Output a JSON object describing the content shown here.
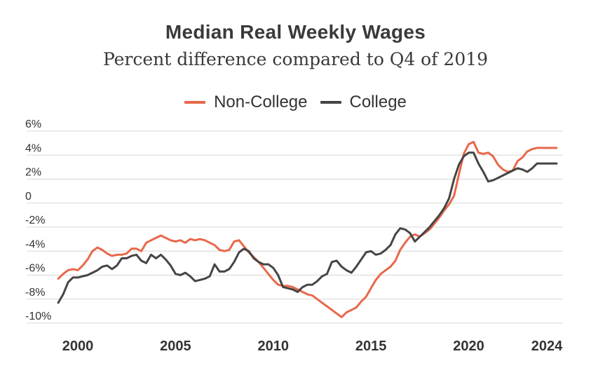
{
  "colors": {
    "non_college": "#e8684a",
    "college": "#454545",
    "grid": "#d6d6d6",
    "text": "#333333"
  },
  "chart_data": {
    "type": "line",
    "title": "Median Real Weekly Wages",
    "subtitle": "Percent difference compared to Q4 of 2019",
    "ylim": [
      -10,
      6
    ],
    "xlim": [
      1999,
      2024.5
    ],
    "yticks": [
      {
        "value": 6,
        "label": "6%"
      },
      {
        "value": 4,
        "label": "4%"
      },
      {
        "value": 2,
        "label": "2%"
      },
      {
        "value": 0,
        "label": "0"
      },
      {
        "value": -2,
        "label": "-2%"
      },
      {
        "value": -4,
        "label": "-4%"
      },
      {
        "value": -6,
        "label": "-6%"
      },
      {
        "value": -8,
        "label": "-8%"
      },
      {
        "value": -10,
        "label": "-10%"
      }
    ],
    "xticks": [
      {
        "value": 2000,
        "label": "2000"
      },
      {
        "value": 2005,
        "label": "2005"
      },
      {
        "value": 2010,
        "label": "2010"
      },
      {
        "value": 2015,
        "label": "2015"
      },
      {
        "value": 2020,
        "label": "2020"
      },
      {
        "value": 2024,
        "label": "2024"
      }
    ],
    "grid": true,
    "legend": "top-center",
    "series": [
      {
        "name": "Non-College",
        "color_key": "non_college",
        "x": [
          1999.0,
          1999.25,
          1999.5,
          1999.75,
          2000.0,
          2000.25,
          2000.5,
          2000.75,
          2001.0,
          2001.25,
          2001.5,
          2001.75,
          2002.0,
          2002.25,
          2002.5,
          2002.75,
          2003.0,
          2003.25,
          2003.5,
          2003.75,
          2004.0,
          2004.25,
          2004.5,
          2004.75,
          2005.0,
          2005.25,
          2005.5,
          2005.75,
          2006.0,
          2006.25,
          2006.5,
          2006.75,
          2007.0,
          2007.25,
          2007.5,
          2007.75,
          2008.0,
          2008.25,
          2008.5,
          2008.75,
          2009.0,
          2009.25,
          2009.5,
          2009.75,
          2010.0,
          2010.25,
          2010.5,
          2010.75,
          2011.0,
          2011.25,
          2011.5,
          2011.75,
          2012.0,
          2012.25,
          2012.5,
          2012.75,
          2013.0,
          2013.25,
          2013.5,
          2013.75,
          2014.0,
          2014.25,
          2014.5,
          2014.75,
          2015.0,
          2015.25,
          2015.5,
          2015.75,
          2016.0,
          2016.25,
          2016.5,
          2016.75,
          2017.0,
          2017.25,
          2017.5,
          2017.75,
          2018.0,
          2018.25,
          2018.5,
          2018.75,
          2019.0,
          2019.25,
          2019.5,
          2019.75,
          2020.0,
          2020.25,
          2020.5,
          2020.75,
          2021.0,
          2021.25,
          2021.5,
          2021.75,
          2022.0,
          2022.25,
          2022.5,
          2022.75,
          2023.0,
          2023.25,
          2023.5,
          2023.75,
          2024.0,
          2024.25,
          2024.5
        ],
        "y": [
          -6.3,
          -5.9,
          -5.6,
          -5.5,
          -5.6,
          -5.2,
          -4.7,
          -4.0,
          -3.7,
          -3.9,
          -4.2,
          -4.4,
          -4.3,
          -4.3,
          -4.2,
          -3.8,
          -3.8,
          -4.0,
          -3.3,
          -3.1,
          -2.9,
          -2.7,
          -2.9,
          -3.1,
          -3.2,
          -3.1,
          -3.3,
          -3.0,
          -3.1,
          -3.0,
          -3.1,
          -3.3,
          -3.5,
          -3.9,
          -4.0,
          -3.9,
          -3.2,
          -3.1,
          -3.6,
          -4.1,
          -4.5,
          -4.9,
          -5.4,
          -5.9,
          -6.4,
          -6.8,
          -6.9,
          -6.9,
          -7.0,
          -7.2,
          -7.4,
          -7.6,
          -7.7,
          -8.0,
          -8.3,
          -8.6,
          -8.9,
          -9.2,
          -9.5,
          -9.1,
          -8.9,
          -8.7,
          -8.2,
          -7.8,
          -7.1,
          -6.4,
          -5.9,
          -5.6,
          -5.3,
          -4.8,
          -3.9,
          -3.3,
          -2.8,
          -2.6,
          -2.8,
          -2.5,
          -2.2,
          -1.7,
          -1.2,
          -0.6,
          -0.1,
          0.6,
          2.4,
          4.1,
          4.9,
          5.1,
          4.2,
          4.1,
          4.2,
          3.9,
          3.2,
          2.8,
          2.6,
          2.7,
          3.5,
          3.8,
          4.3,
          4.5,
          4.6,
          4.6,
          4.6,
          4.6,
          4.6
        ]
      },
      {
        "name": "College",
        "color_key": "college",
        "x": [
          1999.0,
          1999.25,
          1999.5,
          1999.75,
          2000.0,
          2000.25,
          2000.5,
          2000.75,
          2001.0,
          2001.25,
          2001.5,
          2001.75,
          2002.0,
          2002.25,
          2002.5,
          2002.75,
          2003.0,
          2003.25,
          2003.5,
          2003.75,
          2004.0,
          2004.25,
          2004.5,
          2004.75,
          2005.0,
          2005.25,
          2005.5,
          2005.75,
          2006.0,
          2006.25,
          2006.5,
          2006.75,
          2007.0,
          2007.25,
          2007.5,
          2007.75,
          2008.0,
          2008.25,
          2008.5,
          2008.75,
          2009.0,
          2009.25,
          2009.5,
          2009.75,
          2010.0,
          2010.25,
          2010.5,
          2010.75,
          2011.0,
          2011.25,
          2011.5,
          2011.75,
          2012.0,
          2012.25,
          2012.5,
          2012.75,
          2013.0,
          2013.25,
          2013.5,
          2013.75,
          2014.0,
          2014.25,
          2014.5,
          2014.75,
          2015.0,
          2015.25,
          2015.5,
          2015.75,
          2016.0,
          2016.25,
          2016.5,
          2016.75,
          2017.0,
          2017.25,
          2017.5,
          2017.75,
          2018.0,
          2018.25,
          2018.5,
          2018.75,
          2019.0,
          2019.25,
          2019.5,
          2019.75,
          2020.0,
          2020.25,
          2020.5,
          2020.75,
          2021.0,
          2021.25,
          2021.5,
          2021.75,
          2022.0,
          2022.25,
          2022.5,
          2022.75,
          2023.0,
          2023.25,
          2023.5,
          2023.75,
          2024.0,
          2024.25,
          2024.5
        ],
        "y": [
          -8.3,
          -7.6,
          -6.6,
          -6.2,
          -6.2,
          -6.1,
          -6.0,
          -5.8,
          -5.6,
          -5.3,
          -5.2,
          -5.5,
          -5.2,
          -4.6,
          -4.6,
          -4.4,
          -4.3,
          -4.8,
          -5.0,
          -4.3,
          -4.6,
          -4.3,
          -4.7,
          -5.2,
          -5.9,
          -6.0,
          -5.8,
          -6.1,
          -6.5,
          -6.4,
          -6.3,
          -6.1,
          -5.1,
          -5.7,
          -5.7,
          -5.5,
          -4.9,
          -4.1,
          -3.8,
          -4.0,
          -4.6,
          -4.9,
          -5.1,
          -5.1,
          -5.4,
          -6.0,
          -7.0,
          -7.1,
          -7.2,
          -7.4,
          -7.0,
          -6.8,
          -6.8,
          -6.5,
          -6.1,
          -5.9,
          -4.9,
          -4.8,
          -5.3,
          -5.6,
          -5.8,
          -5.3,
          -4.7,
          -4.1,
          -4.0,
          -4.3,
          -4.2,
          -3.9,
          -3.5,
          -2.6,
          -2.1,
          -2.2,
          -2.5,
          -3.2,
          -2.8,
          -2.4,
          -2.0,
          -1.5,
          -1.0,
          -0.4,
          0.4,
          2.0,
          3.2,
          3.9,
          4.2,
          4.2,
          3.3,
          2.6,
          1.8,
          1.9,
          2.1,
          2.3,
          2.5,
          2.7,
          2.9,
          2.8,
          2.6,
          2.9,
          3.3,
          3.3,
          3.3,
          3.3,
          3.3
        ]
      }
    ]
  }
}
